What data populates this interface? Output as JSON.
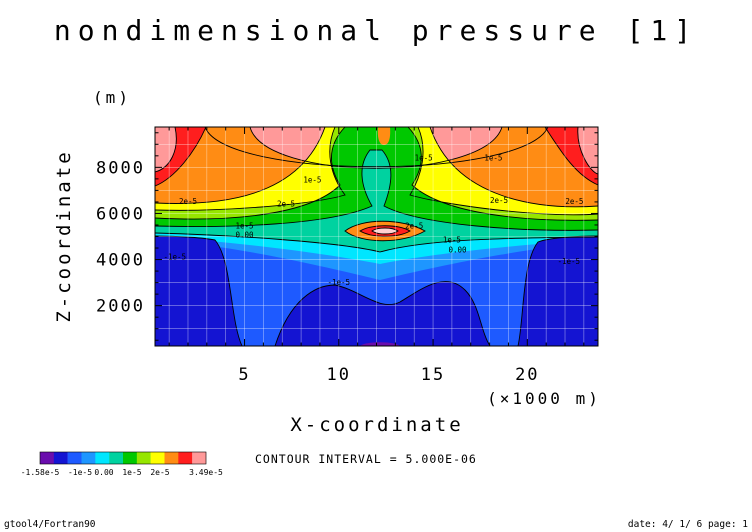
{
  "chart_data": {
    "type": "heatmap",
    "title": "nondimensional pressure [1]",
    "xlabel": "X-coordinate",
    "x_unit": "(×1000 m)",
    "ylabel": "Z-coordinate",
    "y_unit": "(m)",
    "xlim": [
      0.25,
      23.75
    ],
    "ylim": [
      250,
      9750
    ],
    "x_ticks": [
      5,
      10,
      15,
      20
    ],
    "x_tick_labels": [
      "5",
      "10",
      "15",
      "20"
    ],
    "y_ticks": [
      2000,
      4000,
      6000,
      8000
    ],
    "y_tick_labels": [
      "2000",
      "4000",
      "6000",
      "8000"
    ],
    "grid": true,
    "contour_interval_text": "CONTOUR INTERVAL = 5.000E-06",
    "contour_labels": [
      {
        "text": "2e-5",
        "x": 2.0,
        "z": 6400
      },
      {
        "text": "2e-5",
        "x": 7.2,
        "z": 6300
      },
      {
        "text": "1e-5",
        "x": 8.6,
        "z": 7350
      },
      {
        "text": "1e-5",
        "x": 14.5,
        "z": 8300
      },
      {
        "text": "1e-5",
        "x": 18.2,
        "z": 8300
      },
      {
        "text": "2e-5",
        "x": 18.5,
        "z": 6450
      },
      {
        "text": "2e-5",
        "x": 22.5,
        "z": 6400
      },
      {
        "text": "1e-5",
        "x": 5.0,
        "z": 5350
      },
      {
        "text": "0.00",
        "x": 5.0,
        "z": 4950
      },
      {
        "text": "2e-5",
        "x": 14.0,
        "z": 5350
      },
      {
        "text": "1e-5",
        "x": 16.0,
        "z": 4750
      },
      {
        "text": "0.00",
        "x": 16.3,
        "z": 4300
      },
      {
        "text": "-1e-5",
        "x": 1.3,
        "z": 4000
      },
      {
        "text": "-1e-5",
        "x": 22.2,
        "z": 3800
      },
      {
        "text": "-1e-5",
        "x": 10.0,
        "z": 2900
      }
    ],
    "colorbar": {
      "levels": [
        -1.58e-05,
        -1.5e-05,
        -1e-05,
        -5e-06,
        0,
        5e-06,
        1e-05,
        1.5e-05,
        2e-05,
        2.5e-05,
        3e-05,
        3.49e-05
      ],
      "colors": [
        "#6a0dad",
        "#1414d2",
        "#1e5aff",
        "#1e96ff",
        "#00e6ff",
        "#00d2a0",
        "#00c800",
        "#96e600",
        "#ffff00",
        "#ff8c14",
        "#ff1e1e",
        "#ff9999"
      ],
      "tick_labels": [
        "-1.58e-5",
        "-1e-5",
        "0.00",
        "1e-5",
        "2e-5",
        "3.49e-5"
      ]
    }
  },
  "footer": {
    "left": "gtool4/Fortran90",
    "right": "date: 4/ 1/ 6 page: 1"
  }
}
